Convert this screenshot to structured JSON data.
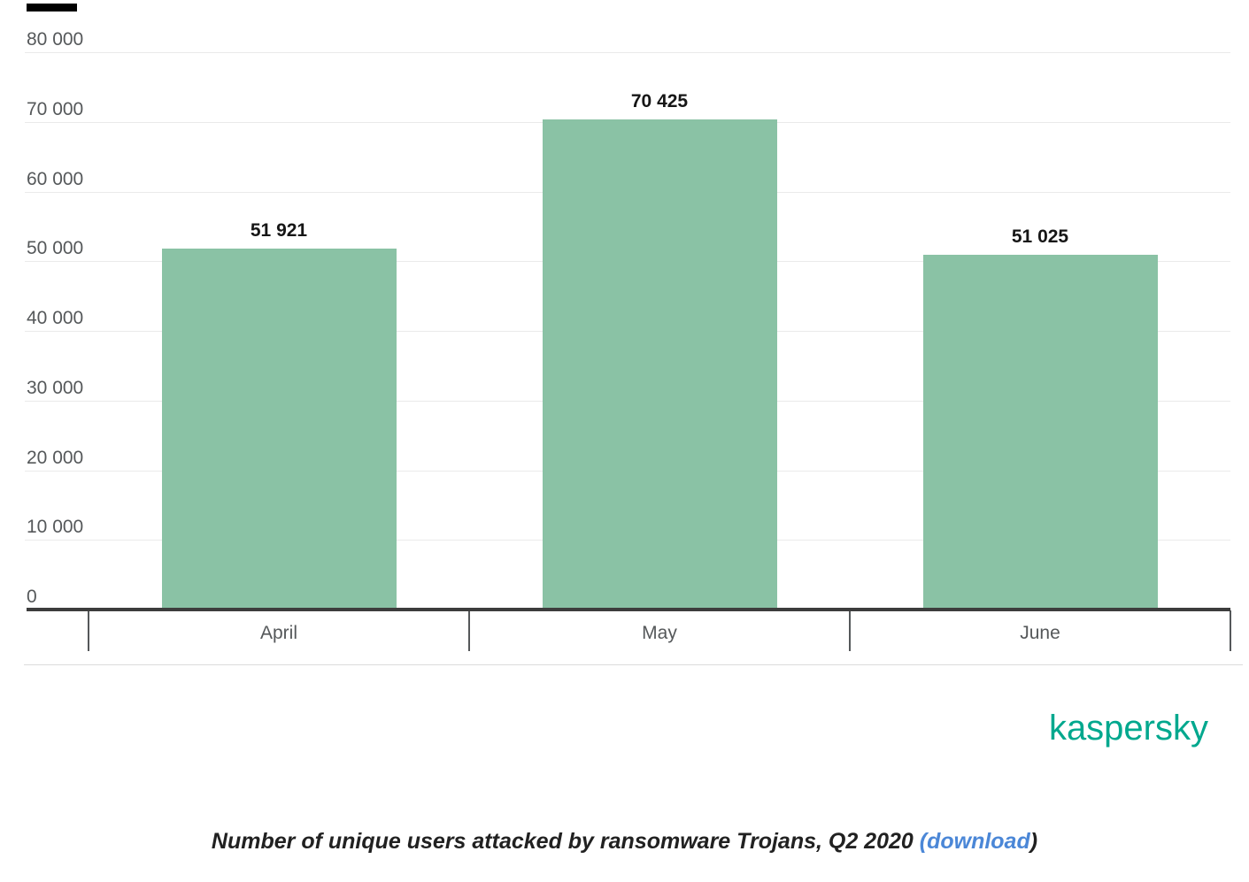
{
  "chart_data": {
    "type": "bar",
    "categories": [
      "April",
      "May",
      "June"
    ],
    "values": [
      51921,
      70425,
      51025
    ],
    "value_labels": [
      "51 921",
      "70 425",
      "51 025"
    ],
    "title": "",
    "xlabel": "",
    "ylabel": "",
    "ylim": [
      0,
      80000
    ],
    "ytick_step": 10000,
    "ytick_labels": [
      "0",
      "10 000",
      "20 000",
      "30 000",
      "40 000",
      "50 000",
      "60 000",
      "70 000",
      "80 000"
    ],
    "grid": true,
    "legend": false,
    "bar_color": "#8ac2a5"
  },
  "branding": {
    "logo_text": "kaspersky",
    "logo_color": "#00a88e"
  },
  "caption": {
    "before_link": "Number of unique users attacked by ransomware Trojans, Q2 2020 ",
    "link": "(download",
    "after_link": ")",
    "link_color": "#4b87d7",
    "text_color": "#212121"
  }
}
